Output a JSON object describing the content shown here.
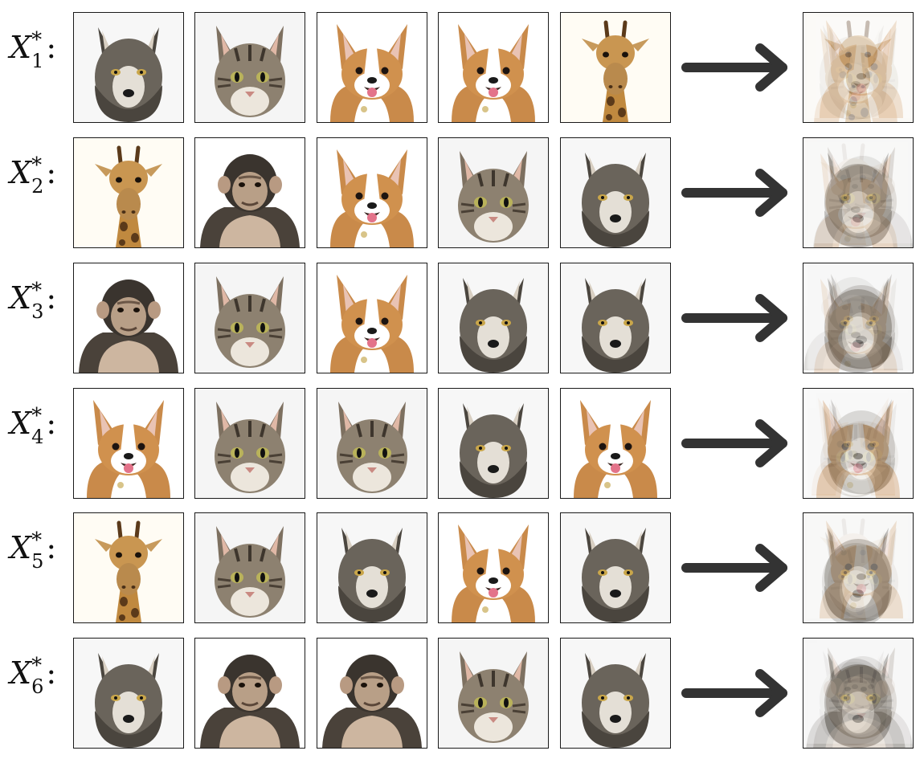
{
  "rows": [
    {
      "var": "X",
      "sub": "1",
      "sup": "*",
      "items": [
        "wolf",
        "cat",
        "corgi",
        "corgi",
        "giraffe"
      ],
      "result": [
        "wolf",
        "cat",
        "corgi",
        "corgi",
        "giraffe"
      ]
    },
    {
      "var": "X",
      "sub": "2",
      "sup": "*",
      "items": [
        "giraffe",
        "chimpanzee",
        "corgi",
        "cat",
        "wolf"
      ],
      "result": [
        "giraffe",
        "chimpanzee",
        "corgi",
        "cat",
        "wolf"
      ]
    },
    {
      "var": "X",
      "sub": "3",
      "sup": "*",
      "items": [
        "chimpanzee",
        "cat",
        "corgi",
        "wolf",
        "wolf"
      ],
      "result": [
        "chimpanzee",
        "cat",
        "corgi",
        "wolf",
        "wolf"
      ]
    },
    {
      "var": "X",
      "sub": "4",
      "sup": "*",
      "items": [
        "corgi",
        "cat",
        "cat",
        "wolf",
        "corgi"
      ],
      "result": [
        "corgi",
        "cat",
        "cat",
        "wolf",
        "corgi"
      ]
    },
    {
      "var": "X",
      "sub": "5",
      "sup": "*",
      "items": [
        "giraffe",
        "cat",
        "wolf",
        "corgi",
        "wolf"
      ],
      "result": [
        "giraffe",
        "cat",
        "wolf",
        "corgi",
        "wolf"
      ]
    },
    {
      "var": "X",
      "sub": "6",
      "sup": "*",
      "items": [
        "wolf",
        "chimpanzee",
        "chimpanzee",
        "cat",
        "wolf"
      ],
      "result": [
        "wolf",
        "chimpanzee",
        "chimpanzee",
        "cat",
        "wolf"
      ]
    }
  ],
  "colors": {
    "arrow": "#333333",
    "wolf": "#5f5a52",
    "cat": "#8a7d6c",
    "corgi": "#c98a4a",
    "giraffe": "#c08a44",
    "chimpanzee": "#3f3a34"
  },
  "icons": [
    "wolf-icon",
    "cat-icon",
    "corgi-icon",
    "giraffe-icon",
    "chimpanzee-icon",
    "right-arrow-icon"
  ]
}
